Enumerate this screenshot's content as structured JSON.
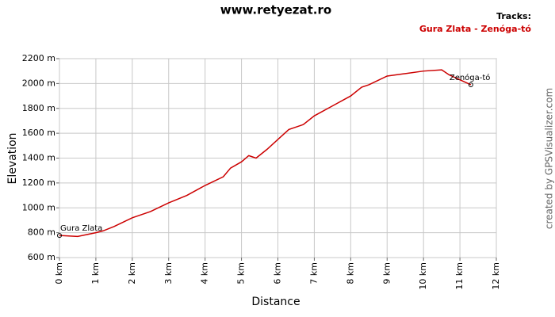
{
  "chart_data": {
    "type": "line",
    "title": "www.retyezat.ro",
    "legend_title": "Tracks:",
    "series": [
      {
        "name": "Gura Zlata - Zenóga-tó",
        "color": "#cc0000",
        "x": [
          0,
          0.5,
          1.0,
          1.2,
          1.5,
          2.0,
          2.5,
          3.0,
          3.5,
          4.0,
          4.5,
          4.7,
          5.0,
          5.2,
          5.4,
          5.7,
          6.0,
          6.3,
          6.7,
          7.0,
          7.5,
          8.0,
          8.3,
          8.5,
          9.0,
          9.5,
          10.0,
          10.5,
          10.7,
          11.0,
          11.3
        ],
        "values": [
          778,
          770,
          800,
          815,
          850,
          920,
          970,
          1040,
          1100,
          1180,
          1250,
          1320,
          1370,
          1420,
          1400,
          1470,
          1550,
          1630,
          1670,
          1740,
          1820,
          1900,
          1970,
          1990,
          2060,
          2080,
          2100,
          2110,
          2070,
          2030,
          1990
        ]
      }
    ],
    "annotations": [
      {
        "label": "Gura Zlata",
        "x": 0,
        "y": 778
      },
      {
        "label": "Zenóga-tó",
        "x": 11.3,
        "y": 1990
      }
    ],
    "x_label": "Distance",
    "y_label": "Elevation",
    "xlim": [
      0,
      12
    ],
    "xticks": [
      {
        "value": 0,
        "label": "0 km"
      },
      {
        "value": 1,
        "label": "1 km"
      },
      {
        "value": 2,
        "label": "2 km"
      },
      {
        "value": 3,
        "label": "3 km"
      },
      {
        "value": 4,
        "label": "4 km"
      },
      {
        "value": 5,
        "label": "5 km"
      },
      {
        "value": 6,
        "label": "6 km"
      },
      {
        "value": 7,
        "label": "7 km"
      },
      {
        "value": 8,
        "label": "8 km"
      },
      {
        "value": 9,
        "label": "9 km"
      },
      {
        "value": 10,
        "label": "10 km"
      },
      {
        "value": 11,
        "label": "11 km"
      },
      {
        "value": 12,
        "label": "12 km"
      }
    ],
    "ylim": [
      600,
      2200
    ],
    "yticks": [
      {
        "value": 600,
        "label": "600 m"
      },
      {
        "value": 800,
        "label": "800 m"
      },
      {
        "value": 1000,
        "label": "1000 m"
      },
      {
        "value": 1200,
        "label": "1200 m"
      },
      {
        "value": 1400,
        "label": "1400 m"
      },
      {
        "value": 1600,
        "label": "1600 m"
      },
      {
        "value": 1800,
        "label": "1800 m"
      },
      {
        "value": 2000,
        "label": "2000 m"
      },
      {
        "value": 2200,
        "label": "2200 m"
      }
    ],
    "grid": true,
    "credit": "created by GPSVisualizer.com"
  }
}
